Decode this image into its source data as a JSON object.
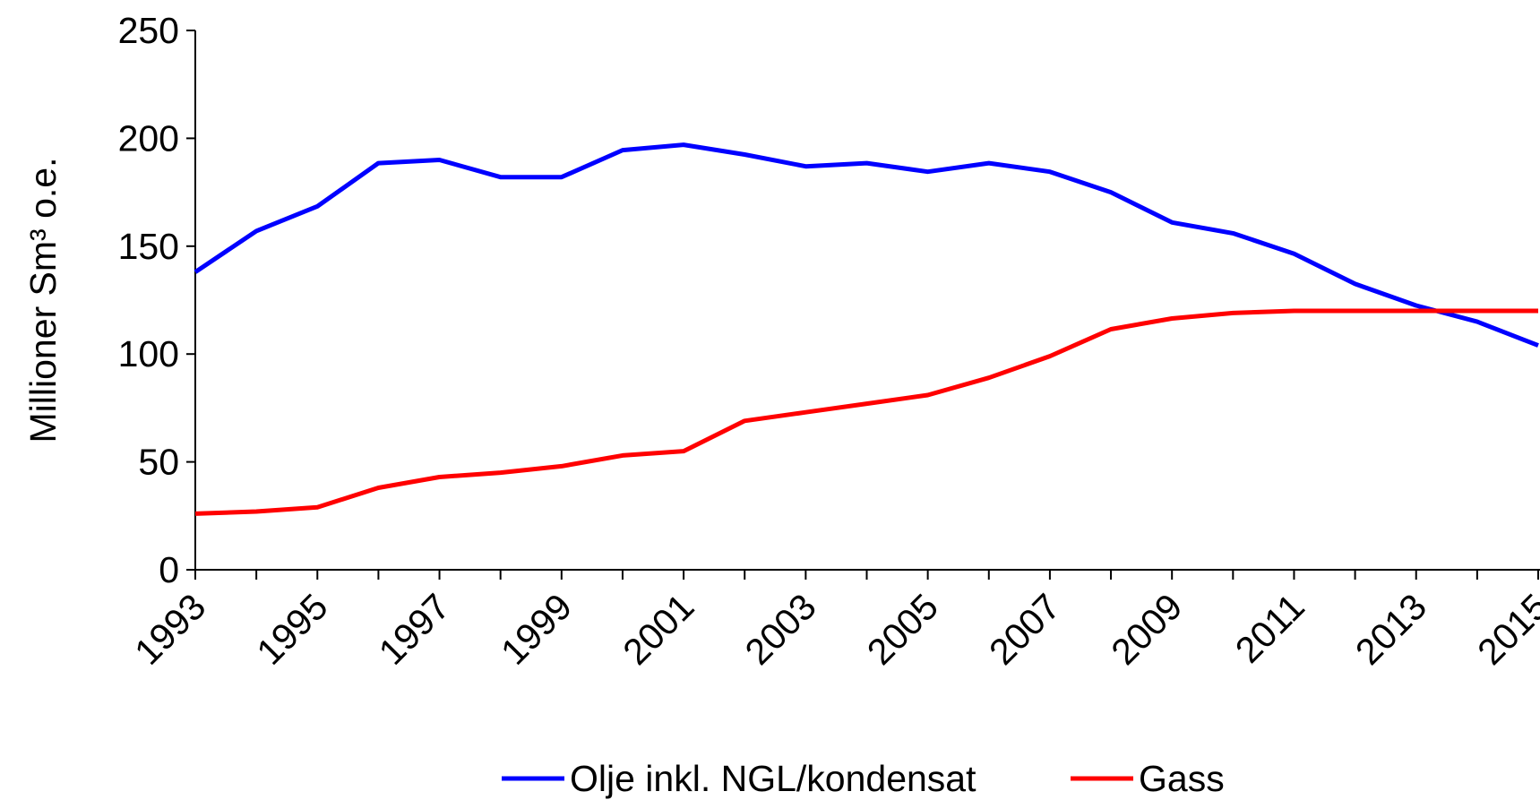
{
  "chart_data": {
    "type": "line",
    "y_label": "Millioner Sm³ o.e.",
    "x": [
      1993,
      1994,
      1995,
      1996,
      1997,
      1998,
      1999,
      2000,
      2001,
      2002,
      2003,
      2004,
      2005,
      2006,
      2007,
      2008,
      2009,
      2010,
      2011,
      2012,
      2013,
      2014,
      2015
    ],
    "series": [
      {
        "name": "Olje inkl. NGL/kondensat",
        "color": "#0000ff",
        "values": [
          138,
          157,
          168.5,
          188.5,
          190,
          182,
          182,
          194.5,
          197,
          192.5,
          187,
          188.5,
          184.5,
          188.5,
          184.5,
          175,
          161,
          156,
          146.5,
          132.5,
          122.5,
          115,
          104
        ]
      },
      {
        "name": "Gass",
        "color": "#ff0000",
        "values": [
          26,
          27,
          29,
          38,
          43,
          45,
          48,
          53,
          55,
          69,
          73,
          77,
          81,
          89,
          99,
          111.5,
          116.5,
          119,
          120,
          120,
          120,
          120,
          120
        ]
      }
    ],
    "xlim": [
      1993,
      2015
    ],
    "xticks": [
      1993,
      1995,
      1997,
      1999,
      2001,
      2003,
      2005,
      2007,
      2009,
      2011,
      2013,
      2015
    ],
    "ylim": [
      0,
      250
    ],
    "yticks": [
      0,
      50,
      100,
      150,
      200,
      250
    ],
    "legend": "bottom"
  }
}
